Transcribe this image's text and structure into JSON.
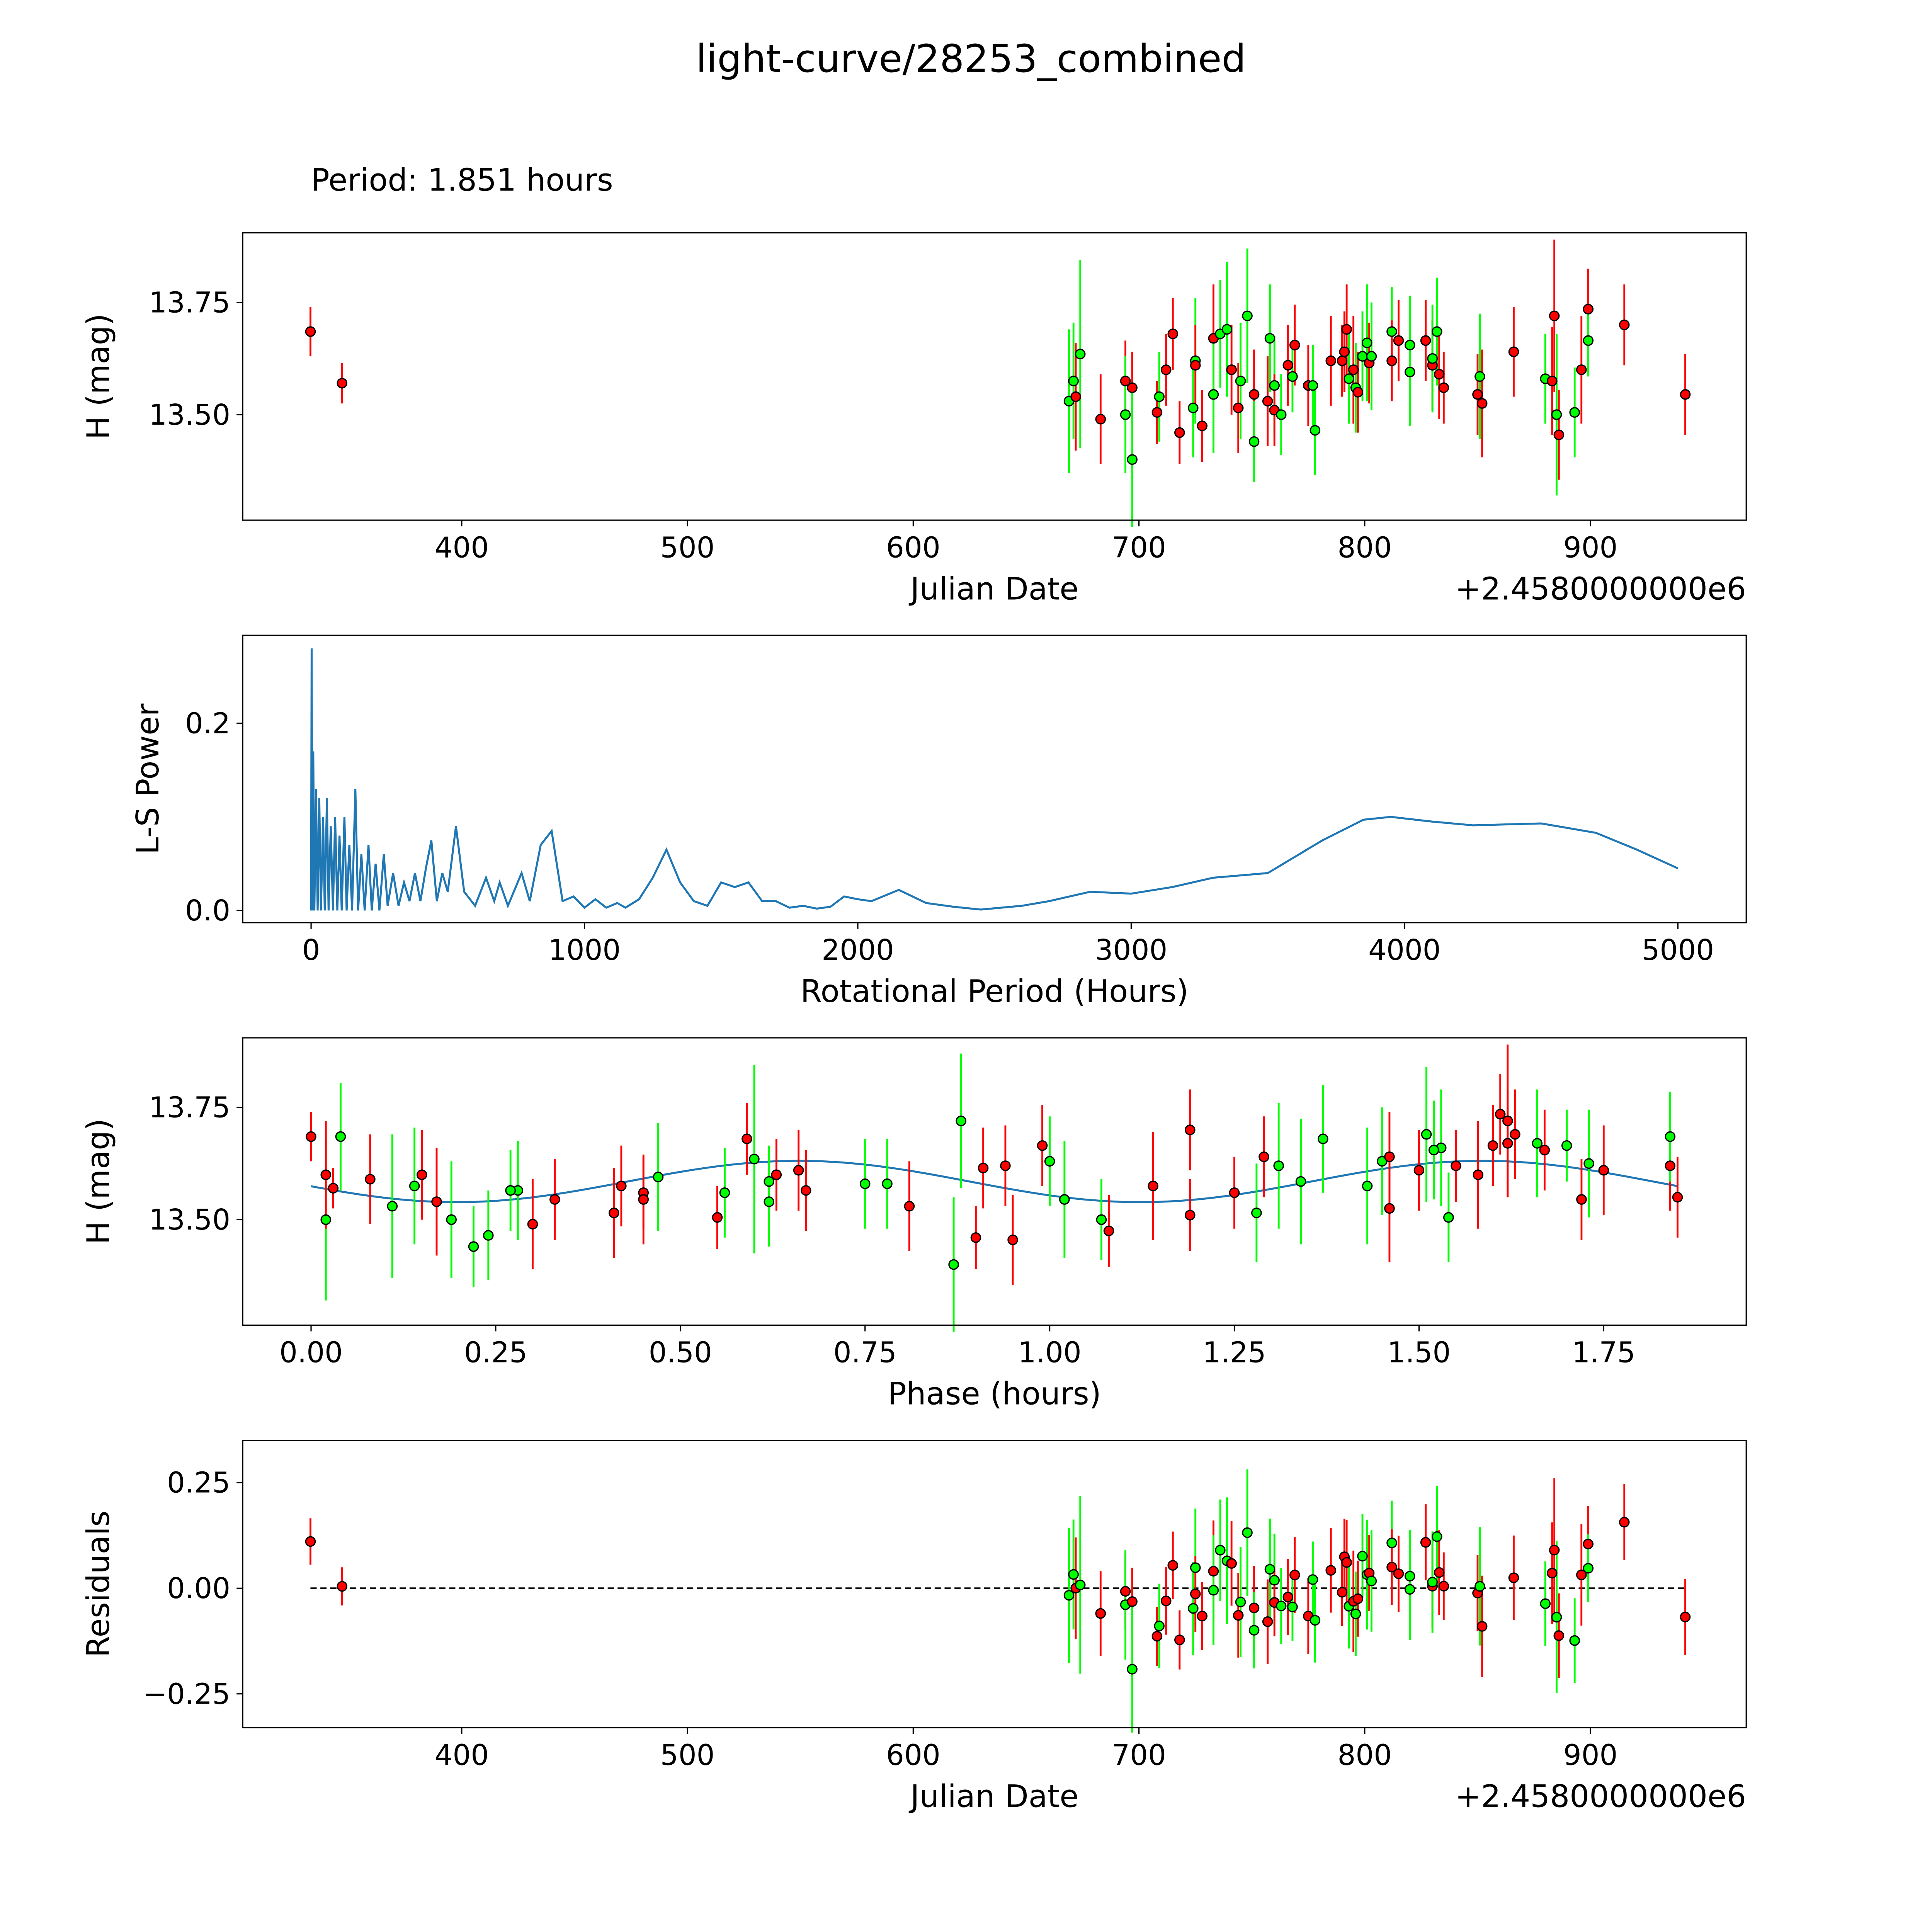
{
  "title": "light-curve/28253_combined",
  "period_text": "Period: 1.851 hours",
  "colors": {
    "band_a": "#ff0000",
    "band_b": "#00ff00",
    "model": "#1f77b4",
    "edge": "#000000"
  },
  "chart_data": [
    {
      "type": "scatter",
      "name": "light-curve",
      "xlabel": "Julian Date",
      "ylabel": "H (mag)",
      "x_offset_text": "+2.4580000000e6",
      "xlim": [
        303,
        969
      ],
      "ylim": [
        13.265,
        13.905
      ],
      "xticks": [
        400,
        500,
        600,
        700,
        800,
        900
      ],
      "xtick_labels": [
        "400",
        "500",
        "600",
        "700",
        "800",
        "900"
      ],
      "yticks": [
        13.5,
        13.75
      ],
      "ytick_labels": [
        "13.50",
        "13.75"
      ]
    },
    {
      "type": "line",
      "name": "periodogram",
      "xlabel": "Rotational Period (Hours)",
      "ylabel": "L-S Power",
      "xlim": [
        -250,
        5250
      ],
      "ylim": [
        -0.013,
        0.294
      ],
      "xticks": [
        0,
        1000,
        2000,
        3000,
        4000,
        5000
      ],
      "xtick_labels": [
        "0",
        "1000",
        "2000",
        "3000",
        "4000",
        "5000"
      ],
      "yticks": [
        0,
        0.2
      ],
      "ytick_labels": [
        "0.0",
        "0.2"
      ],
      "points": [
        [
          0,
          0
        ],
        [
          2,
          0.28
        ],
        [
          5,
          0
        ],
        [
          8,
          0.17
        ],
        [
          12,
          0
        ],
        [
          18,
          0.13
        ],
        [
          24,
          0
        ],
        [
          30,
          0.12
        ],
        [
          36,
          0
        ],
        [
          44,
          0.1
        ],
        [
          50,
          0
        ],
        [
          58,
          0.12
        ],
        [
          64,
          0
        ],
        [
          72,
          0.09
        ],
        [
          80,
          0
        ],
        [
          88,
          0.1
        ],
        [
          96,
          0
        ],
        [
          104,
          0.08
        ],
        [
          112,
          0
        ],
        [
          122,
          0.1
        ],
        [
          130,
          0
        ],
        [
          140,
          0.07
        ],
        [
          150,
          0
        ],
        [
          162,
          0.13
        ],
        [
          172,
          0
        ],
        [
          184,
          0.06
        ],
        [
          196,
          0
        ],
        [
          210,
          0.07
        ],
        [
          222,
          0
        ],
        [
          236,
          0.05
        ],
        [
          250,
          0
        ],
        [
          266,
          0.06
        ],
        [
          280,
          0.005
        ],
        [
          300,
          0.04
        ],
        [
          320,
          0.005
        ],
        [
          340,
          0.03
        ],
        [
          360,
          0.01
        ],
        [
          380,
          0.04
        ],
        [
          400,
          0.01
        ],
        [
          420,
          0.045
        ],
        [
          440,
          0.075
        ],
        [
          460,
          0.01
        ],
        [
          480,
          0.04
        ],
        [
          500,
          0.02
        ],
        [
          530,
          0.09
        ],
        [
          560,
          0.02
        ],
        [
          600,
          0.005
        ],
        [
          640,
          0.035
        ],
        [
          670,
          0.01
        ],
        [
          690,
          0.03
        ],
        [
          720,
          0.005
        ],
        [
          770,
          0.04
        ],
        [
          800,
          0.01
        ],
        [
          840,
          0.07
        ],
        [
          880,
          0.085
        ],
        [
          920,
          0.01
        ],
        [
          960,
          0.015
        ],
        [
          1000,
          0.003
        ],
        [
          1040,
          0.012
        ],
        [
          1080,
          0.003
        ],
        [
          1120,
          0.008
        ],
        [
          1150,
          0.003
        ],
        [
          1200,
          0.012
        ],
        [
          1250,
          0.035
        ],
        [
          1300,
          0.065
        ],
        [
          1350,
          0.03
        ],
        [
          1400,
          0.01
        ],
        [
          1450,
          0.005
        ],
        [
          1500,
          0.03
        ],
        [
          1550,
          0.025
        ],
        [
          1600,
          0.03
        ],
        [
          1650,
          0.01
        ],
        [
          1700,
          0.01
        ],
        [
          1750,
          0.003
        ],
        [
          1800,
          0.005
        ],
        [
          1850,
          0.002
        ],
        [
          1900,
          0.004
        ],
        [
          1950,
          0.015
        ],
        [
          2000,
          0.012
        ],
        [
          2050,
          0.01
        ],
        [
          2150,
          0.022
        ],
        [
          2250,
          0.008
        ],
        [
          2350,
          0.004
        ],
        [
          2450,
          0.001
        ],
        [
          2600,
          0.005
        ],
        [
          2700,
          0.01
        ],
        [
          2850,
          0.02
        ],
        [
          3000,
          0.018
        ],
        [
          3150,
          0.025
        ],
        [
          3300,
          0.035
        ],
        [
          3500,
          0.04
        ],
        [
          3700,
          0.075
        ],
        [
          3850,
          0.097
        ],
        [
          3950,
          0.1
        ],
        [
          4100,
          0.095
        ],
        [
          4250,
          0.091
        ],
        [
          4500,
          0.093
        ],
        [
          4700,
          0.083
        ],
        [
          4850,
          0.065
        ],
        [
          5000,
          0.045
        ]
      ]
    },
    {
      "type": "scatter",
      "name": "phased",
      "xlabel": "Phase (hours)",
      "ylabel": "H (mag)",
      "xlim": [
        -0.0925,
        1.943
      ],
      "ylim": [
        13.265,
        13.905
      ],
      "xticks": [
        0,
        0.25,
        0.5,
        0.75,
        1.0,
        1.25,
        1.5,
        1.75
      ],
      "xtick_labels": [
        "0.00",
        "0.25",
        "0.50",
        "0.75",
        "1.00",
        "1.25",
        "1.50",
        "1.75"
      ],
      "yticks": [
        13.5,
        13.75
      ],
      "ytick_labels": [
        "13.50",
        "13.75"
      ],
      "model": {
        "mean": 13.585,
        "amplitude": 0.046,
        "peak_phase": 0.66,
        "cycle_hours": 0.9255
      }
    },
    {
      "type": "scatter",
      "name": "residuals",
      "xlabel": "Julian Date",
      "ylabel": "Residuals",
      "x_offset_text": "+2.4580000000e6",
      "xlim": [
        303,
        969
      ],
      "ylim": [
        -0.33,
        0.35
      ],
      "xticks": [
        400,
        500,
        600,
        700,
        800,
        900
      ],
      "xtick_labels": [
        "400",
        "500",
        "600",
        "700",
        "800",
        "900"
      ],
      "yticks": [
        -0.25,
        0,
        0.25
      ],
      "ytick_labels": [
        "−0.25",
        "0.00",
        "0.25"
      ]
    }
  ],
  "observations": [
    [
      333,
      13.685,
      0.055,
      "a",
      0.0
    ],
    [
      347,
      13.57,
      0.045,
      "a",
      0.03
    ],
    [
      669,
      13.53,
      0.16,
      "b",
      0.11
    ],
    [
      671,
      13.575,
      0.13,
      "b",
      0.14
    ],
    [
      672,
      13.54,
      0.12,
      "a",
      0.17
    ],
    [
      674,
      13.635,
      0.21,
      "b",
      0.6
    ],
    [
      683,
      13.49,
      0.1,
      "a",
      0.3
    ],
    [
      694,
      13.575,
      0.09,
      "a",
      0.42
    ],
    [
      694,
      13.5,
      0.13,
      "b",
      0.19
    ],
    [
      697,
      13.56,
      0.08,
      "a",
      0.45
    ],
    [
      697,
      13.4,
      0.15,
      "b",
      0.87
    ],
    [
      708,
      13.505,
      0.07,
      "a",
      0.55
    ],
    [
      709,
      13.54,
      0.1,
      "b",
      0.62
    ],
    [
      712,
      13.6,
      0.08,
      "a",
      0.63
    ],
    [
      715,
      13.68,
      0.08,
      "a",
      0.59
    ],
    [
      718,
      13.46,
      0.07,
      "a",
      0.9
    ],
    [
      724,
      13.515,
      0.11,
      "b",
      1.28
    ],
    [
      725,
      13.62,
      0.14,
      "b",
      1.31
    ],
    [
      725,
      13.61,
      0.09,
      "a",
      1.5
    ],
    [
      728,
      13.475,
      0.08,
      "a",
      1.08
    ],
    [
      733,
      13.67,
      0.12,
      "a",
      1.62
    ],
    [
      733,
      13.545,
      0.13,
      "b",
      1.02
    ],
    [
      736,
      13.68,
      0.12,
      "b",
      1.37
    ],
    [
      739,
      13.69,
      0.15,
      "b",
      1.51
    ],
    [
      741,
      13.6,
      0.1,
      "a",
      0.15
    ],
    [
      744,
      13.515,
      0.1,
      "a",
      0.41
    ],
    [
      745,
      13.575,
      0.13,
      "b",
      1.43
    ],
    [
      748,
      13.72,
      0.15,
      "b",
      0.88
    ],
    [
      751,
      13.545,
      0.1,
      "a",
      0.45
    ],
    [
      751,
      13.44,
      0.09,
      "b",
      0.22
    ],
    [
      757,
      13.53,
      0.1,
      "a",
      0.81
    ],
    [
      758,
      13.67,
      0.12,
      "b",
      1.66
    ],
    [
      760,
      13.565,
      0.11,
      "b",
      0.28
    ],
    [
      760,
      13.51,
      0.08,
      "a",
      1.19
    ],
    [
      763,
      13.5,
      0.09,
      "b",
      1.07
    ],
    [
      766,
      13.61,
      0.09,
      "a",
      0.66
    ],
    [
      768,
      13.585,
      0.08,
      "b",
      0.62
    ],
    [
      769,
      13.655,
      0.09,
      "a",
      1.67
    ],
    [
      775,
      13.565,
      0.09,
      "a",
      0.67
    ],
    [
      777,
      13.565,
      0.09,
      "b",
      0.27
    ],
    [
      778,
      13.465,
      0.1,
      "b",
      0.24
    ],
    [
      785,
      13.62,
      0.1,
      "a",
      1.84
    ],
    [
      790,
      13.62,
      0.08,
      "a",
      1.55
    ],
    [
      791,
      13.64,
      0.09,
      "a",
      1.29
    ],
    [
      792,
      13.69,
      0.1,
      "a",
      1.63
    ],
    [
      793,
      13.58,
      0.1,
      "b",
      0.75
    ],
    [
      795,
      13.6,
      0.12,
      "a",
      1.58
    ],
    [
      796,
      13.56,
      0.1,
      "b",
      0.56
    ],
    [
      797,
      13.55,
      0.09,
      "a",
      1.85
    ],
    [
      799,
      13.63,
      0.1,
      "b",
      1.0
    ],
    [
      801,
      13.66,
      0.13,
      "b",
      1.53
    ],
    [
      802,
      13.615,
      0.09,
      "a",
      0.91
    ],
    [
      803,
      13.63,
      0.12,
      "b",
      1.45
    ],
    [
      812,
      13.685,
      0.1,
      "b",
      1.84
    ],
    [
      812,
      13.62,
      0.09,
      "a",
      0.94
    ],
    [
      815,
      13.665,
      0.09,
      "a",
      1.6
    ],
    [
      820,
      13.655,
      0.11,
      "b",
      1.52
    ],
    [
      820,
      13.595,
      0.12,
      "b",
      0.47
    ],
    [
      827,
      13.665,
      0.09,
      "a",
      0.99
    ],
    [
      830,
      13.61,
      0.1,
      "a",
      1.75
    ],
    [
      830,
      13.625,
      0.12,
      "b",
      1.73
    ],
    [
      832,
      13.685,
      0.12,
      "b",
      0.04
    ],
    [
      833,
      13.59,
      0.1,
      "a",
      0.08
    ],
    [
      835,
      13.56,
      0.08,
      "a",
      1.25
    ],
    [
      850,
      13.545,
      0.09,
      "a",
      0.33
    ],
    [
      851,
      13.585,
      0.14,
      "b",
      1.34
    ],
    [
      852,
      13.525,
      0.12,
      "a",
      1.46
    ],
    [
      866,
      13.64,
      0.1,
      "a",
      1.46
    ],
    [
      880,
      13.58,
      0.1,
      "b",
      0.78
    ],
    [
      883,
      13.575,
      0.12,
      "a",
      1.14
    ],
    [
      884,
      13.72,
      0.17,
      "a",
      1.62
    ],
    [
      885,
      13.5,
      0.18,
      "b",
      0.02
    ],
    [
      886,
      13.455,
      0.1,
      "a",
      0.95
    ],
    [
      893,
      13.505,
      0.1,
      "b",
      1.54
    ],
    [
      896,
      13.6,
      0.12,
      "a",
      0.02
    ],
    [
      899,
      13.735,
      0.09,
      "a",
      1.61
    ],
    [
      899,
      13.665,
      0.08,
      "b",
      1.7
    ],
    [
      915,
      13.7,
      0.09,
      "a",
      1.19
    ],
    [
      942,
      13.545,
      0.09,
      "a",
      1.72
    ]
  ]
}
